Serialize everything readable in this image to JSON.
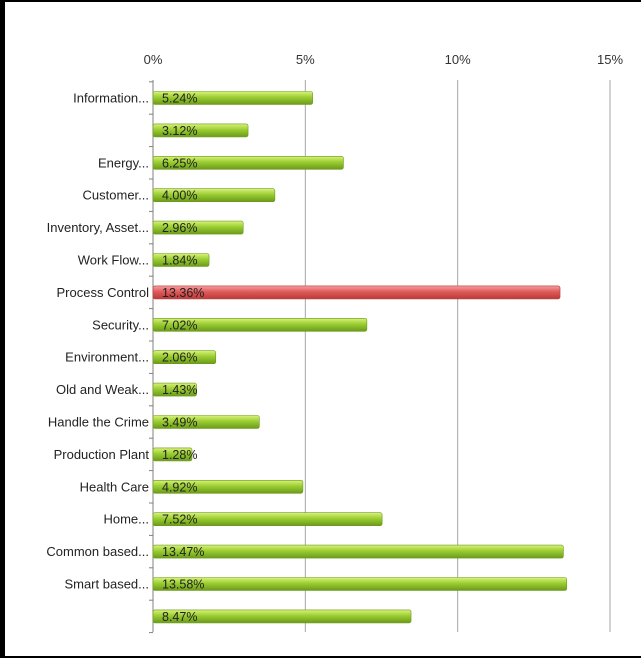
{
  "chart_data": {
    "type": "bar",
    "orientation": "horizontal",
    "categories": [
      "Information...",
      "",
      "Energy...",
      "Customer...",
      "Inventory, Asset...",
      "Work Flow...",
      "Process Control",
      "Security...",
      "Environment...",
      "Old and Weak...",
      "Handle the Crime",
      "Production Plant",
      "Health Care",
      "Home...",
      "Common based...",
      "Smart based...",
      ""
    ],
    "values": [
      5.24,
      3.12,
      6.25,
      4.0,
      2.96,
      1.84,
      13.36,
      7.02,
      2.06,
      1.43,
      3.49,
      1.28,
      4.92,
      7.52,
      13.47,
      13.58,
      8.47
    ],
    "data_labels": [
      "5.24%",
      "3.12%",
      "6.25%",
      "4.00%",
      "2.96%",
      "1.84%",
      "13.36%",
      "7.02%",
      "2.06%",
      "1.43%",
      "3.49%",
      "1.28%",
      "4.92%",
      "7.52%",
      "13.47%",
      "13.58%",
      "8.47%"
    ],
    "highlight_index": 6,
    "xlim": [
      0,
      15
    ],
    "x_ticks": [
      0,
      5,
      10,
      15
    ],
    "x_tick_labels": [
      "0%",
      "5%",
      "10%",
      "15%"
    ],
    "x_axis_position": "top",
    "grid": true,
    "legend": "none",
    "title": "",
    "xlabel": "",
    "ylabel": "",
    "colors": {
      "bar": "#9acd32",
      "bar_light": "#d9f27a",
      "bar_dark": "#6b9a1a",
      "highlight": "#e05a5a",
      "highlight_light": "#f4a0a0",
      "highlight_dark": "#b83a3a",
      "gridline": "#a6a6a6",
      "axis": "#808080"
    }
  }
}
